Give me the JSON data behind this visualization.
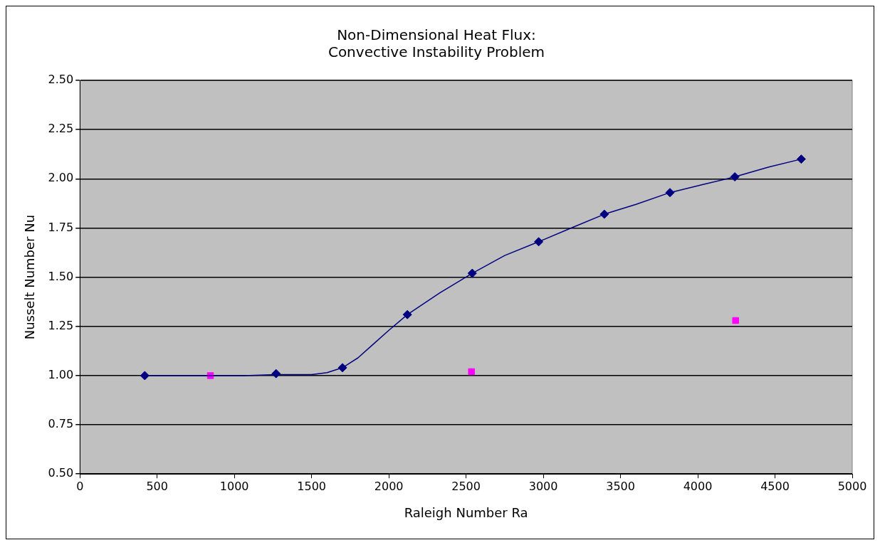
{
  "chart_data": {
    "type": "line",
    "title": "Non-Dimensional Heat Flux:\nConvective Instability Problem",
    "xlabel": "Raleigh Number Ra",
    "ylabel": "Nusselt Number Nu",
    "series": [
      {
        "color": "#000080",
        "marker": "none",
        "x": [
          420,
          1060,
          1270,
          1500,
          1600,
          1700,
          1800,
          1900,
          2000,
          2120,
          2330,
          2540,
          2750,
          2970,
          3180,
          3395,
          3600,
          3820,
          4030,
          4240,
          4460,
          4670
        ],
        "values": [
          1.0,
          1.0,
          1.005,
          1.005,
          1.015,
          1.04,
          1.09,
          1.16,
          1.23,
          1.31,
          1.42,
          1.52,
          1.61,
          1.68,
          1.75,
          1.82,
          1.87,
          1.93,
          1.97,
          2.01,
          2.06,
          2.1
        ]
      },
      {
        "type": "scatter",
        "color": "#000080",
        "marker": "diamond",
        "x": [
          420,
          1270,
          1700,
          2120,
          2540,
          2970,
          3395,
          3820,
          4240,
          4670
        ],
        "values": [
          1.0,
          1.01,
          1.04,
          1.31,
          1.52,
          1.68,
          1.82,
          1.93,
          2.01,
          2.1
        ]
      },
      {
        "type": "scatter",
        "color": "#ff00ff",
        "marker": "square",
        "x": [
          845,
          2535,
          4245
        ],
        "values": [
          1.0,
          1.02,
          1.28
        ]
      }
    ],
    "xlim": [
      0,
      5000
    ],
    "xticks": [
      0,
      500,
      1000,
      1500,
      2000,
      2500,
      3000,
      3500,
      4000,
      4500,
      5000
    ],
    "ylim": [
      0.5,
      2.5
    ],
    "yticks": [
      {
        "value": 0.5,
        "label": "0.50"
      },
      {
        "value": 0.75,
        "label": "0.75"
      },
      {
        "value": 1.0,
        "label": "1.00"
      },
      {
        "value": 1.25,
        "label": "1.25"
      },
      {
        "value": 1.5,
        "label": "1.50"
      },
      {
        "value": 1.75,
        "label": "1.75"
      },
      {
        "value": 2.0,
        "label": "2.00"
      },
      {
        "value": 2.25,
        "label": "2.25"
      },
      {
        "value": 2.5,
        "label": "2.50"
      }
    ],
    "grid": "y",
    "legend": false
  }
}
